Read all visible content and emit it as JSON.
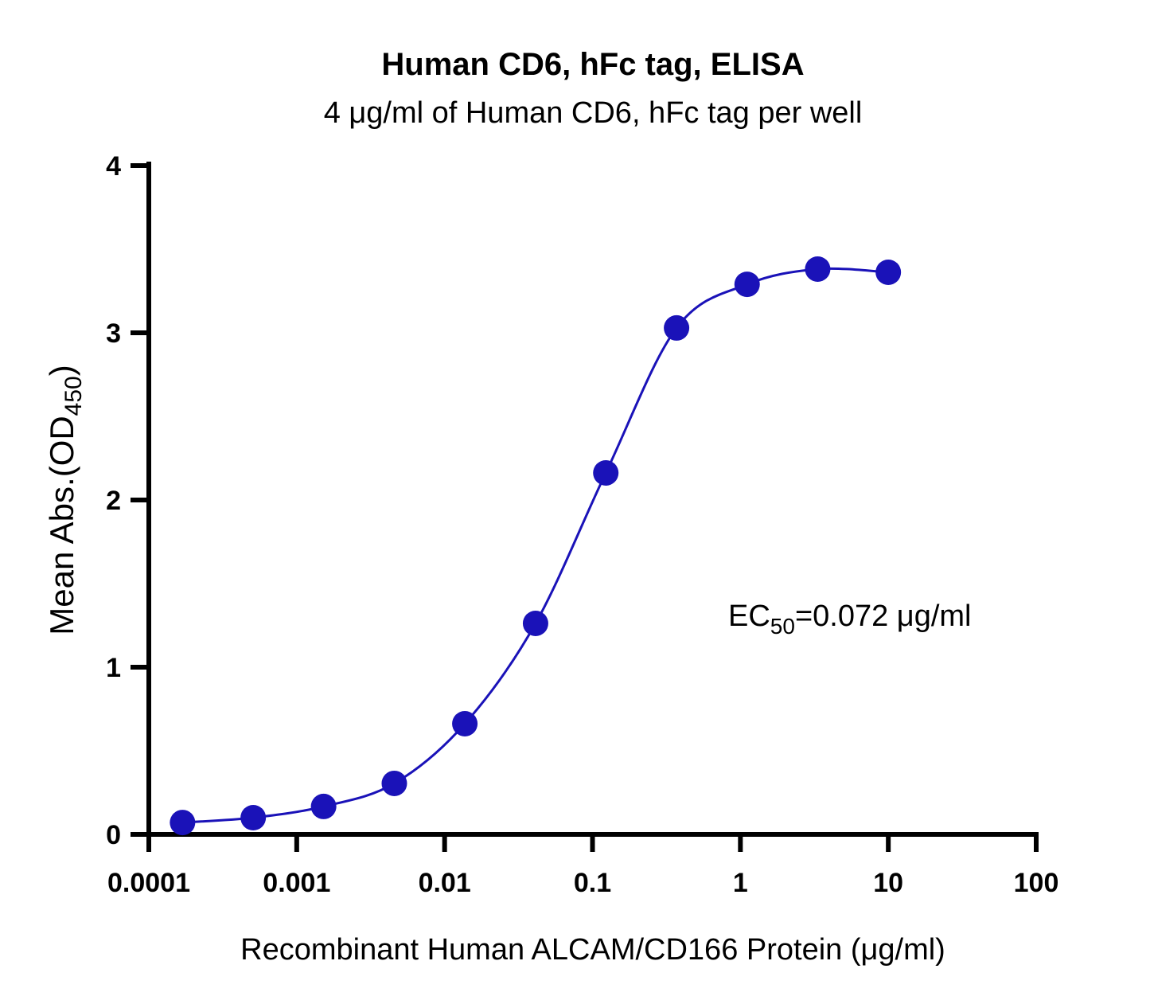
{
  "chart_data": {
    "type": "scatter",
    "title": "Human CD6, hFc tag, ELISA",
    "subtitle": "4 μg/ml of Human CD6, hFc tag per well",
    "x_label": "Recombinant Human ALCAM/CD166 Protein (μg/ml)",
    "y_label": {
      "main": "Mean Abs.(OD",
      "sub": "450",
      "end": ")"
    },
    "annotation": {
      "main": "EC",
      "sub": "50",
      "end": "=0.072 μg/ml"
    },
    "x_scale": "log",
    "xlim": [
      0.0001,
      100
    ],
    "xticks": [
      0.0001,
      0.001,
      0.01,
      0.1,
      1,
      10,
      100
    ],
    "ylim": [
      0,
      4
    ],
    "yticks": [
      0,
      1,
      2,
      3,
      4
    ],
    "x": [
      0.000169,
      0.000508,
      0.00152,
      0.00457,
      0.0137,
      0.0412,
      0.123,
      0.37,
      1.11,
      3.33,
      10
    ],
    "series": [
      {
        "color": "#1a12b8",
        "values": [
          0.071,
          0.1,
          0.167,
          0.305,
          0.662,
          1.262,
          2.162,
          3.029,
          3.29,
          3.381,
          3.362
        ]
      }
    ]
  }
}
